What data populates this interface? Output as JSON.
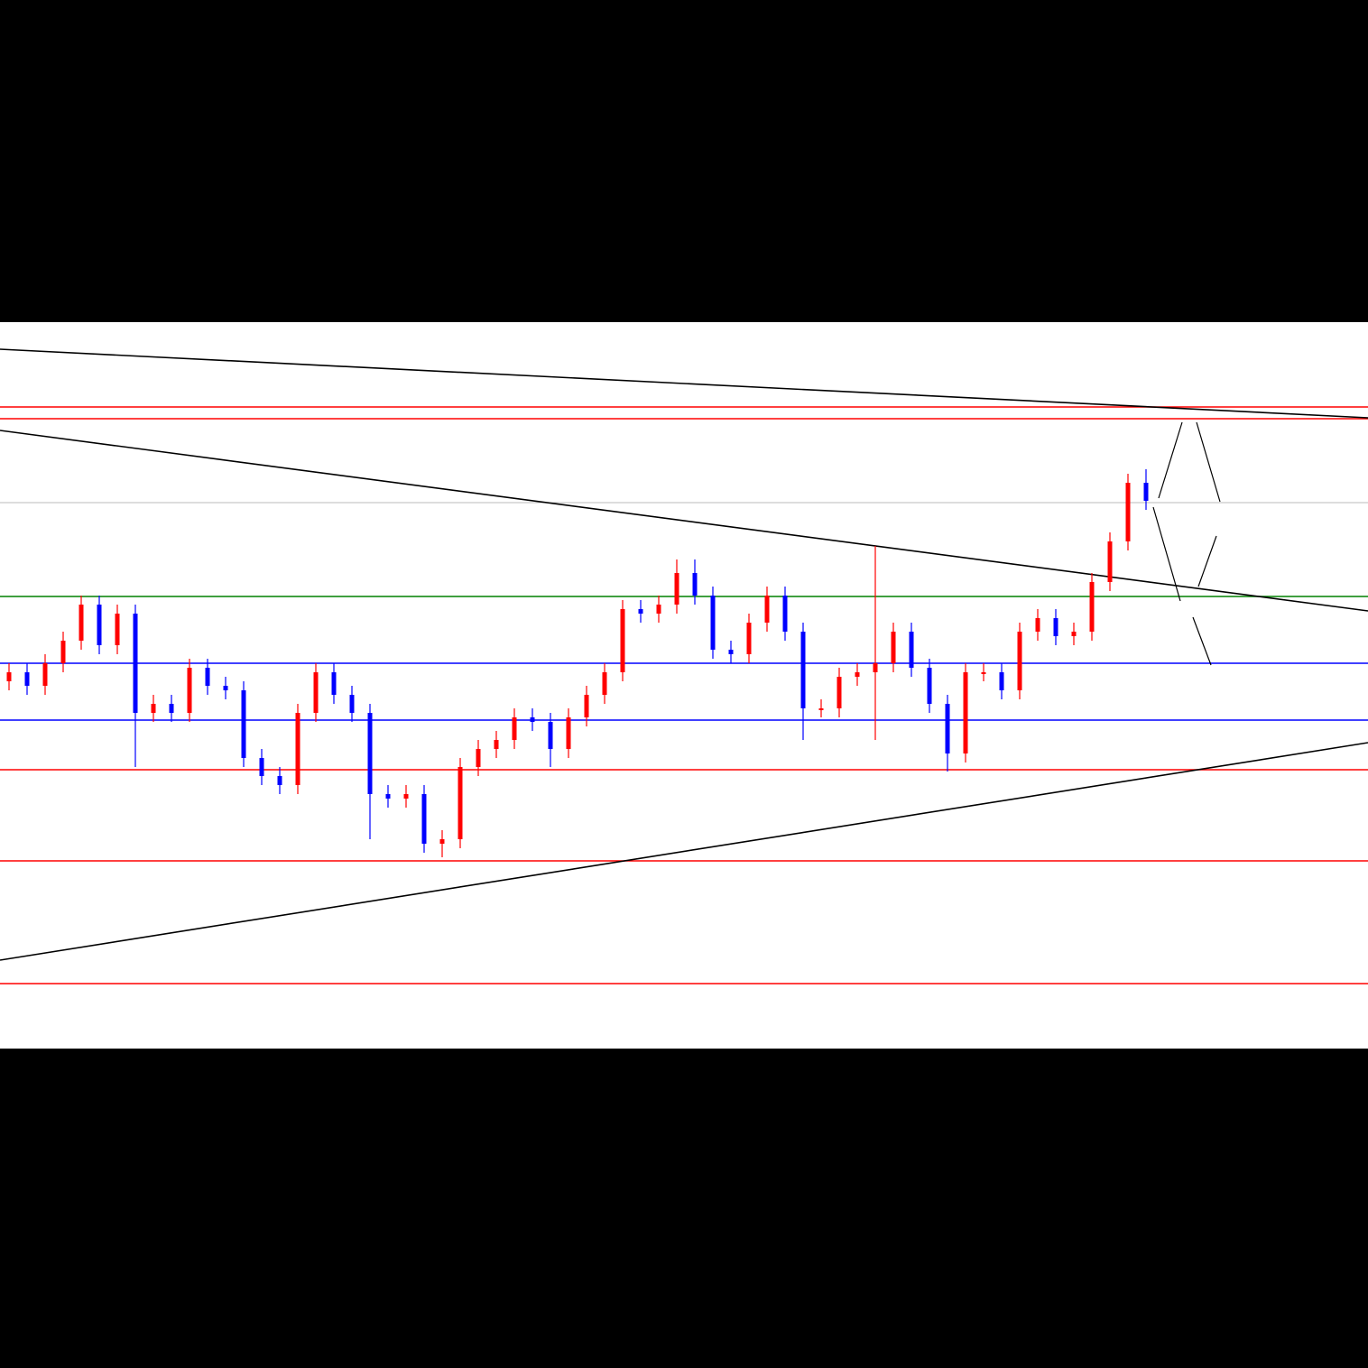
{
  "chart_data": {
    "type": "candlestick",
    "up_color": "#ff0000",
    "down_color": "#0000ff",
    "ylim": [
      0,
      161
    ],
    "open": [
      81.4,
      83.4,
      80.4,
      85.4,
      90.4,
      98.4,
      89.4,
      96.4,
      74.4,
      76.4,
      74.4,
      84.4,
      80.4,
      79.4,
      64.4,
      60.4,
      58.4,
      74.4,
      83.4,
      78.4,
      74.4,
      56.4,
      55.4,
      56.4,
      45.4,
      46.4,
      62.4,
      66.4,
      68.4,
      73.4,
      72.4,
      66.4,
      73.4,
      78.4,
      83.4,
      97.4,
      96.4,
      98.4,
      105.4,
      100.4,
      88.4,
      87.4,
      94.4,
      100.4,
      92.4,
      75.0,
      75.4,
      82.4,
      83.4,
      85.4,
      92.4,
      84.4,
      76.4,
      65.4,
      83.0,
      83.4,
      79.4,
      92.4,
      95.4,
      91.4,
      92.4,
      103.4,
      112.4,
      125.4
    ],
    "high": [
      85.4,
      85.4,
      87.4,
      92.4,
      100.4,
      100.4,
      98.4,
      98.4,
      78.4,
      78.4,
      86.4,
      86.4,
      82.4,
      81.4,
      66.4,
      62.4,
      76.4,
      85.4,
      85.4,
      80.4,
      76.4,
      58.4,
      58.4,
      58.4,
      48.4,
      64.4,
      68.4,
      70.4,
      75.4,
      75.4,
      74.4,
      75.4,
      80.4,
      85.4,
      99.4,
      99.4,
      100.4,
      108.4,
      108.4,
      102.4,
      90.4,
      96.4,
      102.4,
      102.4,
      94.4,
      77.4,
      84.4,
      85.4,
      111.4,
      94.4,
      94.4,
      86.4,
      78.4,
      85.4,
      85.4,
      85.4,
      94.4,
      97.4,
      97.4,
      94.4,
      105.4,
      114.4,
      127.4,
      128.4
    ],
    "low": [
      79.4,
      78.4,
      78.4,
      83.4,
      88.4,
      87.4,
      87.4,
      62.4,
      72.4,
      72.4,
      72.4,
      78.4,
      77.4,
      62.4,
      58.4,
      56.4,
      56.4,
      72.4,
      76.4,
      72.4,
      46.4,
      53.4,
      53.4,
      43.4,
      42.4,
      44.4,
      60.4,
      64.4,
      66.4,
      70.4,
      62.4,
      64.4,
      71.4,
      76.4,
      81.4,
      94.4,
      94.4,
      96.4,
      98.4,
      86.4,
      85.4,
      85.4,
      92.4,
      90.4,
      68.4,
      73.4,
      73.4,
      80.4,
      68.4,
      83.4,
      82.4,
      74.4,
      61.4,
      63.4,
      81.4,
      77.4,
      77.4,
      90.4,
      89.4,
      89.4,
      90.4,
      101.4,
      110.4,
      119.4
    ],
    "close": [
      83.4,
      80.4,
      85.4,
      90.4,
      98.4,
      89.4,
      96.4,
      74.4,
      76.4,
      74.4,
      84.4,
      80.4,
      79.4,
      64.4,
      60.4,
      58.4,
      74.4,
      83.4,
      78.4,
      74.4,
      56.4,
      55.4,
      56.4,
      45.4,
      46.4,
      62.4,
      66.4,
      68.4,
      73.4,
      72.4,
      66.4,
      73.4,
      78.4,
      83.4,
      97.4,
      96.4,
      98.4,
      105.4,
      100.4,
      88.4,
      87.4,
      94.4,
      100.4,
      92.4,
      75.4,
      75.4,
      82.4,
      83.4,
      85.4,
      92.4,
      84.4,
      76.4,
      65.4,
      83.4,
      83.4,
      79.4,
      92.4,
      95.4,
      91.4,
      92.4,
      103.4,
      112.4,
      125.4,
      121.4
    ]
  }
}
